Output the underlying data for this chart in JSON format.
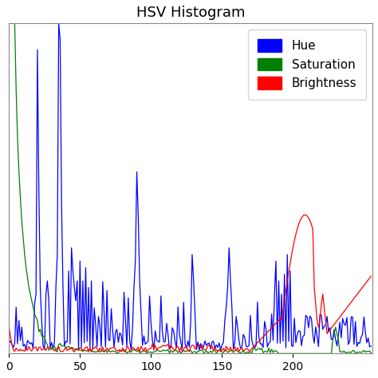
{
  "title": "HSV Histogram",
  "xlim": [
    0,
    256
  ],
  "ylim": [
    0,
    1.0
  ],
  "x_ticks": [
    0,
    50,
    100,
    150,
    200
  ],
  "legend_labels": [
    "Hue",
    "Saturation",
    "Brightness"
  ],
  "legend_colors": [
    "blue",
    "green",
    "red"
  ],
  "background_color": "#ffffff",
  "title_fontsize": 13,
  "figsize": [
    4.74,
    4.74
  ],
  "dpi": 100
}
